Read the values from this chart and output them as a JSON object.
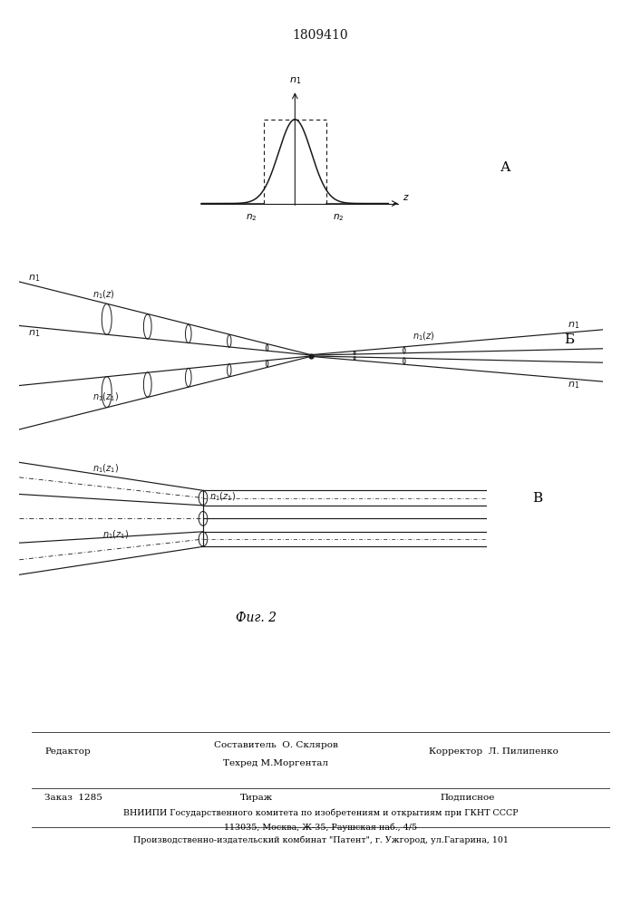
{
  "patent_number": "1809410",
  "label_A": "А",
  "label_B": "Б",
  "label_V": "В",
  "fig_caption": "Фиг. 2",
  "background_color": "#ffffff",
  "line_color": "#1a1a1a",
  "footer_line1_left": "Редактор",
  "footer_sestavitel": "Составитель  О. Скляров",
  "footer_tehred": "Техред М.Моргентал",
  "footer_korrektor": "Корректор  Л. Пилипенко",
  "footer_order": "Заказ  1285",
  "footer_tirazh": "Тираж",
  "footer_podpisnoe": "Подписное",
  "footer_vniiipi": "ВНИИПИ Государственного комитета по изобретениям и открытиям при ГКНТ СССР",
  "footer_address": "113035, Москва, Ж-35, Раушская наб., 4/5",
  "footer_producer": "Производственно-издательский комбинат \"Патент\", г. Ужгород, ул.Гагарина, 101"
}
